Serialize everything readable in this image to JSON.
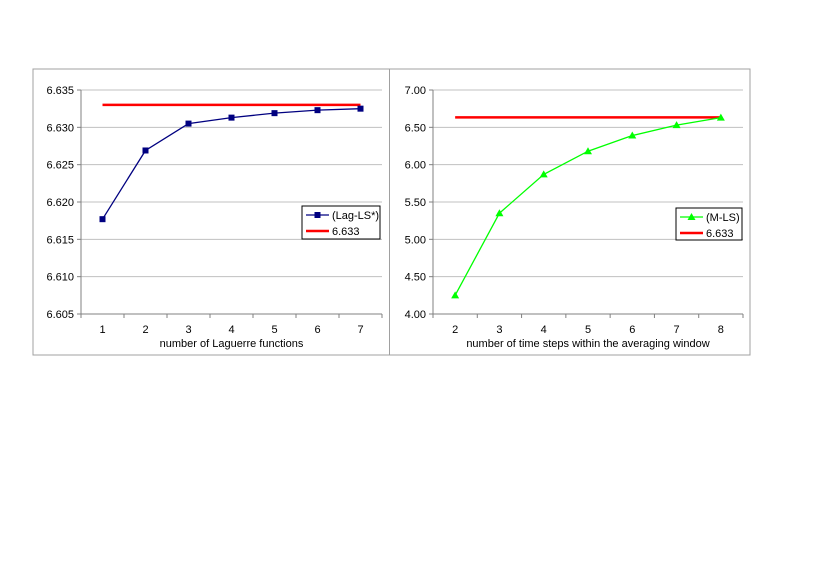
{
  "chart_data": [
    {
      "type": "line",
      "xlabel": "number of Laguerre functions",
      "ylabel": "",
      "categories": [
        1,
        2,
        3,
        4,
        5,
        6,
        7
      ],
      "ylim": [
        6.605,
        6.635
      ],
      "yticks": [
        "6.605",
        "6.610",
        "6.615",
        "6.620",
        "6.625",
        "6.630",
        "6.635"
      ],
      "grid": true,
      "legend_position": "right",
      "series": [
        {
          "name": "(Lag-LS*)",
          "values": [
            6.6177,
            6.6269,
            6.6305,
            6.6313,
            6.6319,
            6.6323,
            6.6325
          ],
          "color": "#000080",
          "marker": "square"
        },
        {
          "name": "6.633",
          "values": [
            6.633,
            6.633,
            6.633,
            6.633,
            6.633,
            6.633,
            6.633
          ],
          "color": "#ff0000",
          "marker": "none"
        }
      ]
    },
    {
      "type": "line",
      "xlabel": "number of time steps within the averaging window",
      "ylabel": "",
      "categories": [
        2,
        3,
        4,
        5,
        6,
        7,
        8
      ],
      "ylim": [
        4.0,
        7.0
      ],
      "yticks": [
        "4.00",
        "4.50",
        "5.00",
        "5.50",
        "6.00",
        "6.50",
        "7.00"
      ],
      "grid": true,
      "legend_position": "right",
      "series": [
        {
          "name": "(M-LS)",
          "values": [
            4.25,
            5.35,
            5.87,
            6.18,
            6.39,
            6.53,
            6.63
          ],
          "color": "#00ff00",
          "marker": "triangle"
        },
        {
          "name": "6.633",
          "values": [
            6.633,
            6.633,
            6.633,
            6.633,
            6.633,
            6.633,
            6.633
          ],
          "color": "#ff0000",
          "marker": "none"
        }
      ]
    }
  ]
}
